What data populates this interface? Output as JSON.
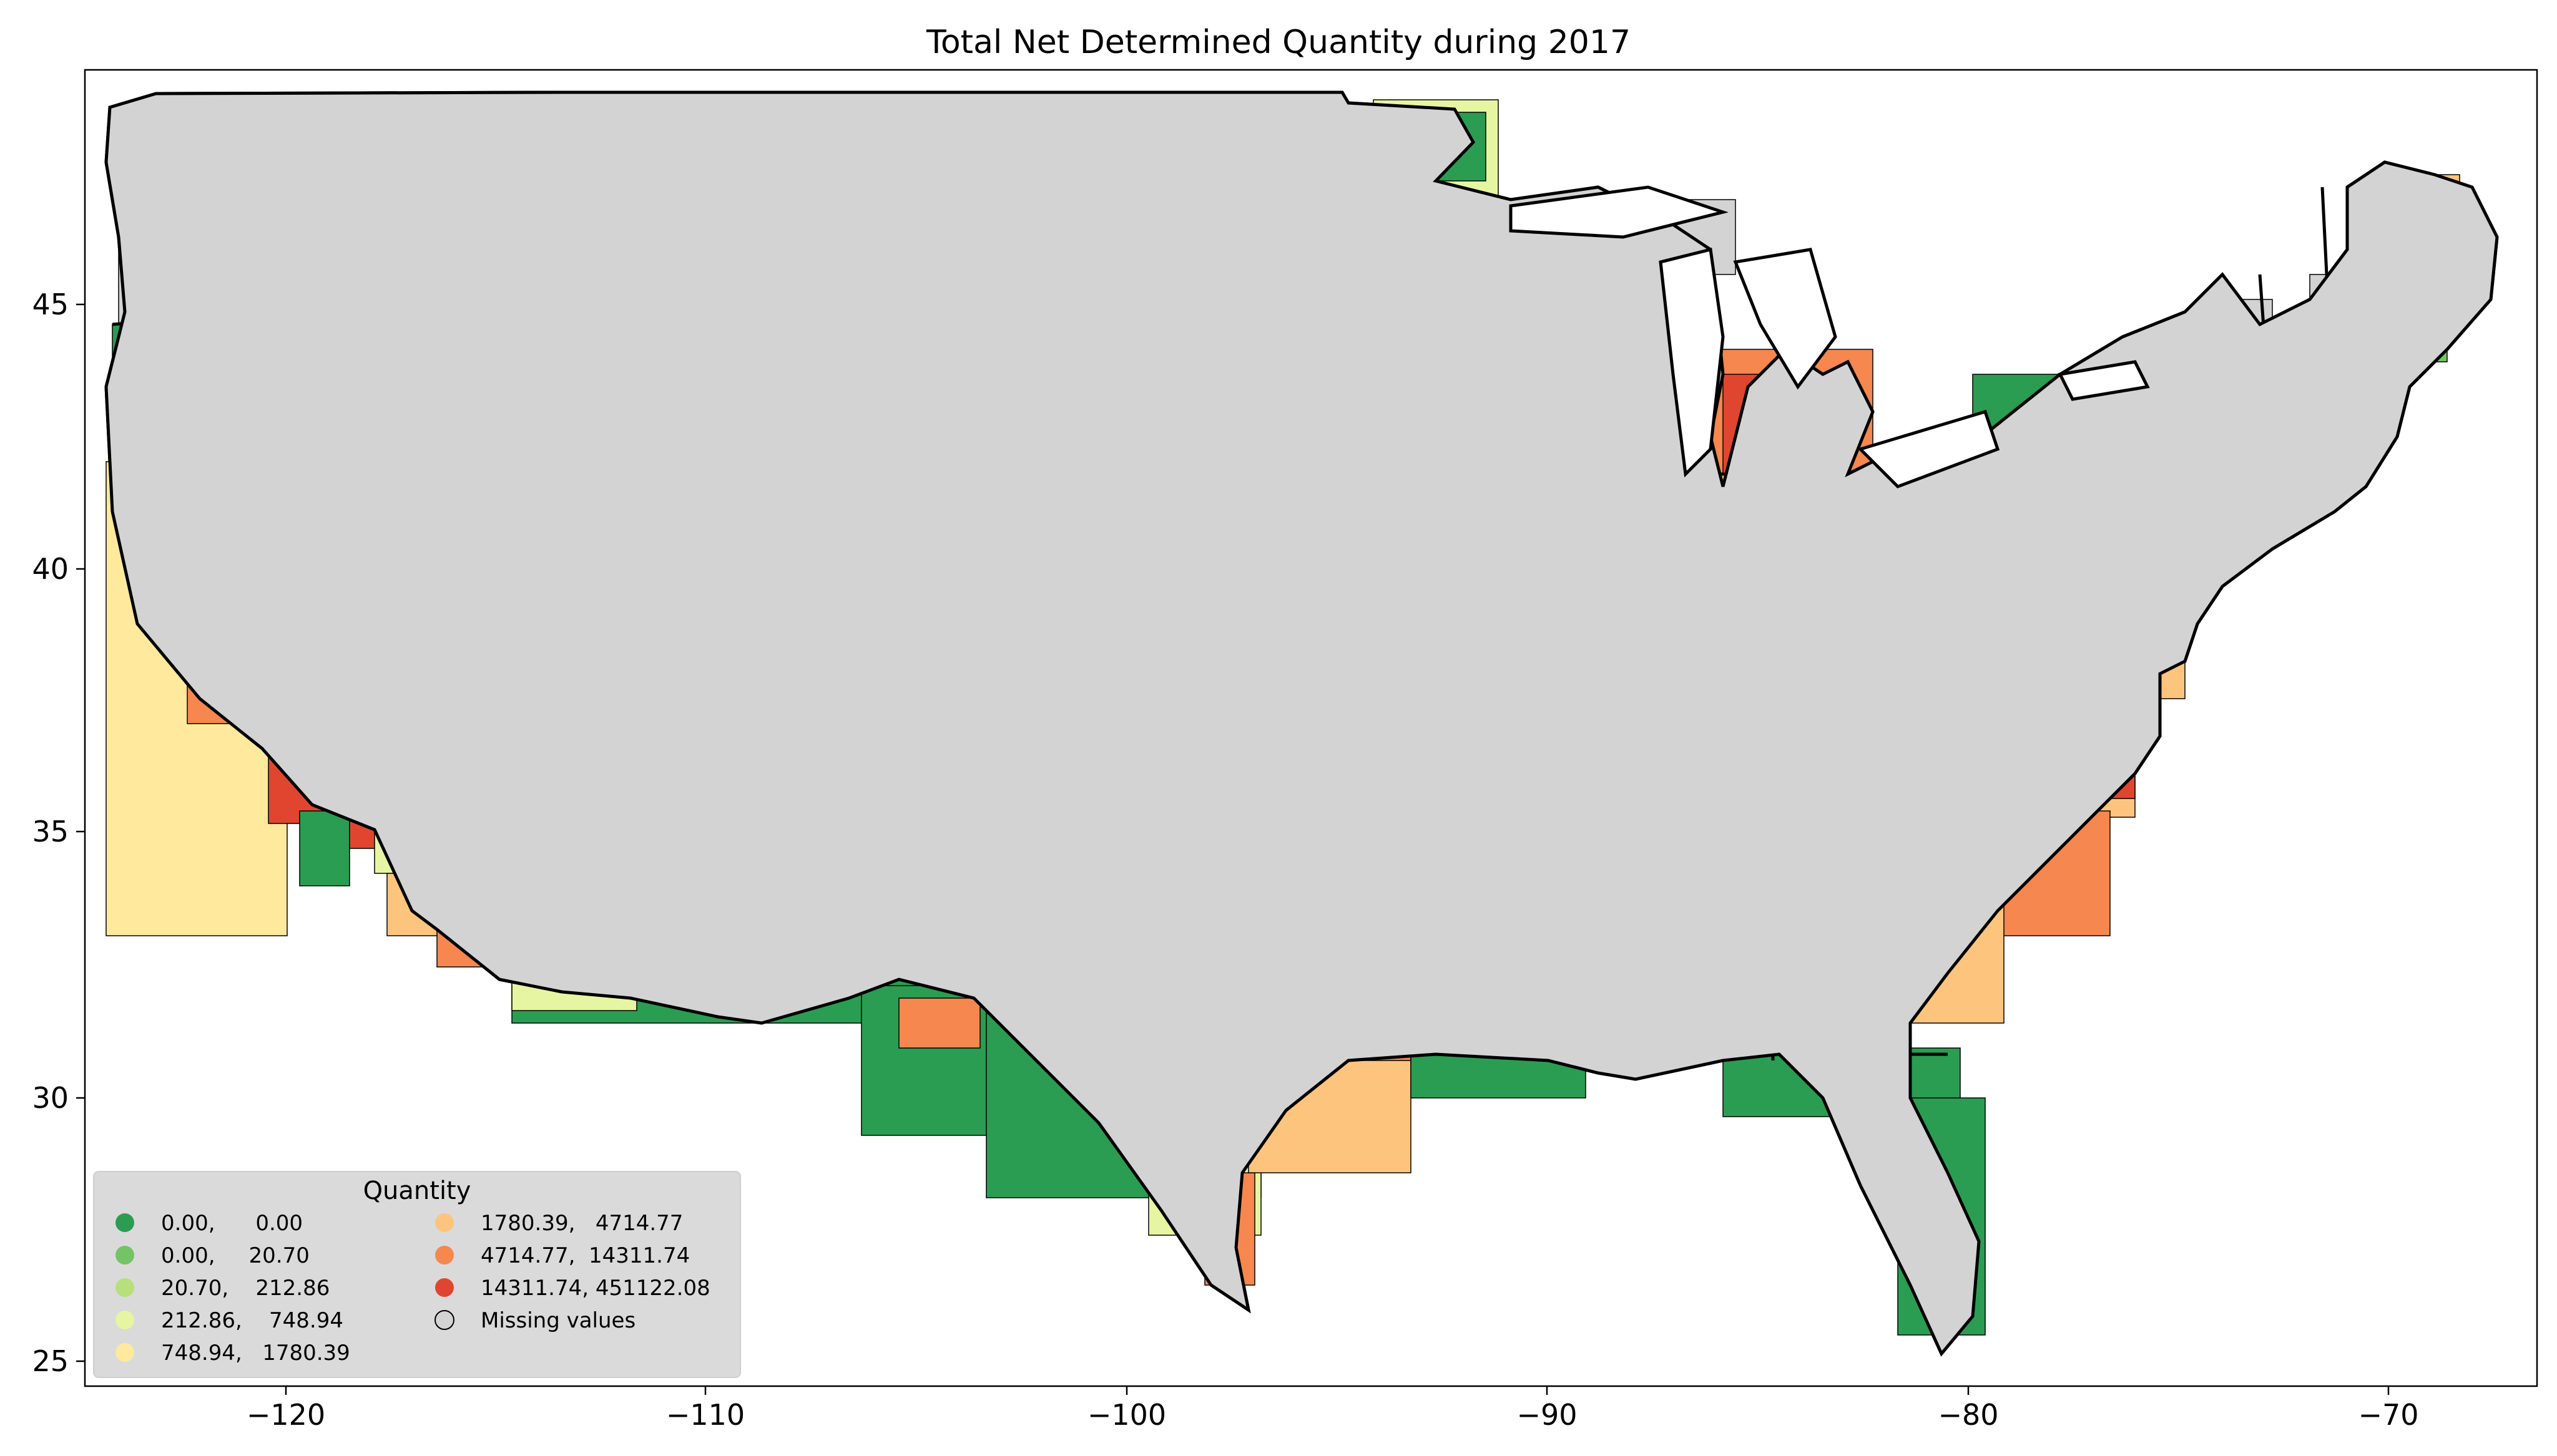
{
  "title": "Total Net Determined Quantity during 2017",
  "colors": {
    "missing": "#d3d3d3",
    "background": "#ffffff",
    "legend_bg": "#d9d9d9",
    "border": "#000000",
    "classes": [
      "#2a9d52",
      "#74c365",
      "#b7e07a",
      "#e6f5a1",
      "#fee99d",
      "#fdc47d",
      "#f5874f",
      "#e0462f"
    ]
  },
  "axes": {
    "x_ticks": [
      "−120",
      "−110",
      "−100",
      "−90",
      "−80",
      "−70"
    ],
    "y_ticks": [
      "45",
      "40",
      "35",
      "30",
      "25"
    ]
  },
  "legend": {
    "title": "Quantity",
    "entries": [
      {
        "label": "0.00,      0.00"
      },
      {
        "label": "0.00,     20.70"
      },
      {
        "label": "20.70,    212.86"
      },
      {
        "label": "212.86,    748.94"
      },
      {
        "label": "748.94,   1780.39"
      },
      {
        "label": "1780.39,   4714.77"
      },
      {
        "label": "4714.77,  14311.74"
      },
      {
        "label": "14311.74, 451122.08"
      },
      {
        "label": "Missing values"
      }
    ]
  }
}
